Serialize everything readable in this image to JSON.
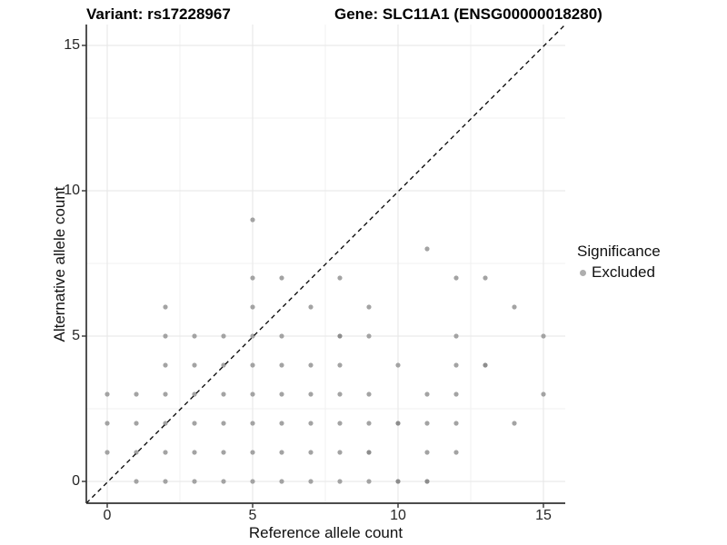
{
  "header": {
    "variant": "Variant: rs17228967",
    "gene": "Gene: SLC11A1 (ENSG00000018280)"
  },
  "legend": {
    "title": "Significance",
    "items": [
      {
        "label": "Excluded",
        "color": "#aeaeae"
      }
    ]
  },
  "colors": {
    "point": "#a3a3a3",
    "point_overlap": "#8d8d8d",
    "grid_major": "#e6e6e6",
    "grid_minor": "#f1f1f1",
    "axis_line": "#333333",
    "tick_mark": "#333333",
    "identity_line": "#000000",
    "background": "#ffffff"
  },
  "chart_data": {
    "type": "scatter",
    "title": "Variant: rs17228967   Gene: SLC11A1 (ENSG00000018280)",
    "xlabel": "Reference allele count",
    "ylabel": "Alternative allele count",
    "xlim": [
      -0.75,
      15.75
    ],
    "ylim": [
      -0.75,
      15.75
    ],
    "x_ticks": [
      0,
      5,
      10,
      15
    ],
    "y_ticks": [
      0,
      5,
      10,
      15
    ],
    "x_minor_ticks": [
      2.5,
      7.5,
      12.5
    ],
    "y_minor_ticks": [
      2.5,
      7.5,
      12.5
    ],
    "grid": true,
    "legend_position": "right",
    "identity_line": {
      "equation": "y = x",
      "style": "dashed",
      "color": "#000000"
    },
    "series": [
      {
        "name": "Excluded",
        "color": "#a3a3a3",
        "points": [
          [
            1,
            0
          ],
          [
            2,
            0
          ],
          [
            3,
            0
          ],
          [
            4,
            0
          ],
          [
            5,
            0
          ],
          [
            6,
            0
          ],
          [
            7,
            0
          ],
          [
            8,
            0
          ],
          [
            9,
            0
          ],
          [
            10,
            0
          ],
          [
            11,
            0
          ],
          [
            0,
            1
          ],
          [
            1,
            1
          ],
          [
            2,
            1
          ],
          [
            3,
            1
          ],
          [
            4,
            1
          ],
          [
            5,
            1
          ],
          [
            6,
            1
          ],
          [
            7,
            1
          ],
          [
            8,
            1
          ],
          [
            9,
            1
          ],
          [
            11,
            1
          ],
          [
            12,
            1
          ],
          [
            0,
            2
          ],
          [
            1,
            2
          ],
          [
            2,
            2
          ],
          [
            3,
            2
          ],
          [
            4,
            2
          ],
          [
            5,
            2
          ],
          [
            6,
            2
          ],
          [
            7,
            2
          ],
          [
            8,
            2
          ],
          [
            9,
            2
          ],
          [
            10,
            2
          ],
          [
            11,
            2
          ],
          [
            12,
            2
          ],
          [
            14,
            2
          ],
          [
            0,
            3
          ],
          [
            1,
            3
          ],
          [
            2,
            3
          ],
          [
            3,
            3
          ],
          [
            4,
            3
          ],
          [
            5,
            3
          ],
          [
            6,
            3
          ],
          [
            7,
            3
          ],
          [
            8,
            3
          ],
          [
            9,
            3
          ],
          [
            11,
            3
          ],
          [
            12,
            3
          ],
          [
            15,
            3
          ],
          [
            2,
            4
          ],
          [
            3,
            4
          ],
          [
            4,
            4
          ],
          [
            5,
            4
          ],
          [
            6,
            4
          ],
          [
            7,
            4
          ],
          [
            8,
            4
          ],
          [
            10,
            4
          ],
          [
            12,
            4
          ],
          [
            13,
            4
          ],
          [
            2,
            5
          ],
          [
            3,
            5
          ],
          [
            4,
            5
          ],
          [
            5,
            5
          ],
          [
            6,
            5
          ],
          [
            8,
            5
          ],
          [
            9,
            5
          ],
          [
            12,
            5
          ],
          [
            15,
            5
          ],
          [
            2,
            6
          ],
          [
            5,
            6
          ],
          [
            7,
            6
          ],
          [
            9,
            6
          ],
          [
            14,
            6
          ],
          [
            5,
            7
          ],
          [
            6,
            7
          ],
          [
            8,
            7
          ],
          [
            12,
            7
          ],
          [
            13,
            7
          ],
          [
            11,
            8
          ],
          [
            5,
            9
          ]
        ]
      }
    ],
    "overlap_points": [
      [
        9,
        1
      ],
      [
        10,
        2
      ],
      [
        8,
        5
      ],
      [
        13,
        4
      ],
      [
        10,
        0
      ],
      [
        11,
        0
      ]
    ]
  }
}
